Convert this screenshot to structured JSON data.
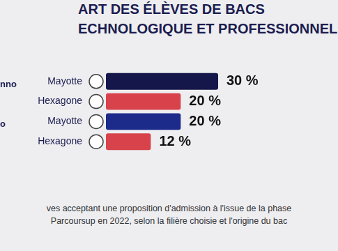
{
  "chart_data": {
    "type": "bar",
    "title": "ART DES ÉLÈVES DE BACS",
    "subtitle": "ECHNOLOGIQUE ET PROFESSIONNEL",
    "categories": [
      "Mayotte",
      "Hexagone",
      "Mayotte",
      "Hexagone"
    ],
    "values": [
      30,
      20,
      20,
      12
    ],
    "value_labels": [
      "30 %",
      "20 %",
      "20 %",
      "12 %"
    ],
    "colors": [
      "#15174a",
      "#d8434b",
      "#1c2a8a",
      "#d8434b"
    ],
    "annotations": [
      "nno",
      "o"
    ],
    "caption": [
      "ves acceptant une proposition d'admission à l'issue de la phase",
      "Parcoursup en 2022, selon la filière choisie et l'origine du bac"
    ],
    "xlim": [
      0,
      30
    ],
    "orientation": "horizontal",
    "data_labels": true,
    "tick_labels": "y",
    "grid": false,
    "legend": "none"
  }
}
